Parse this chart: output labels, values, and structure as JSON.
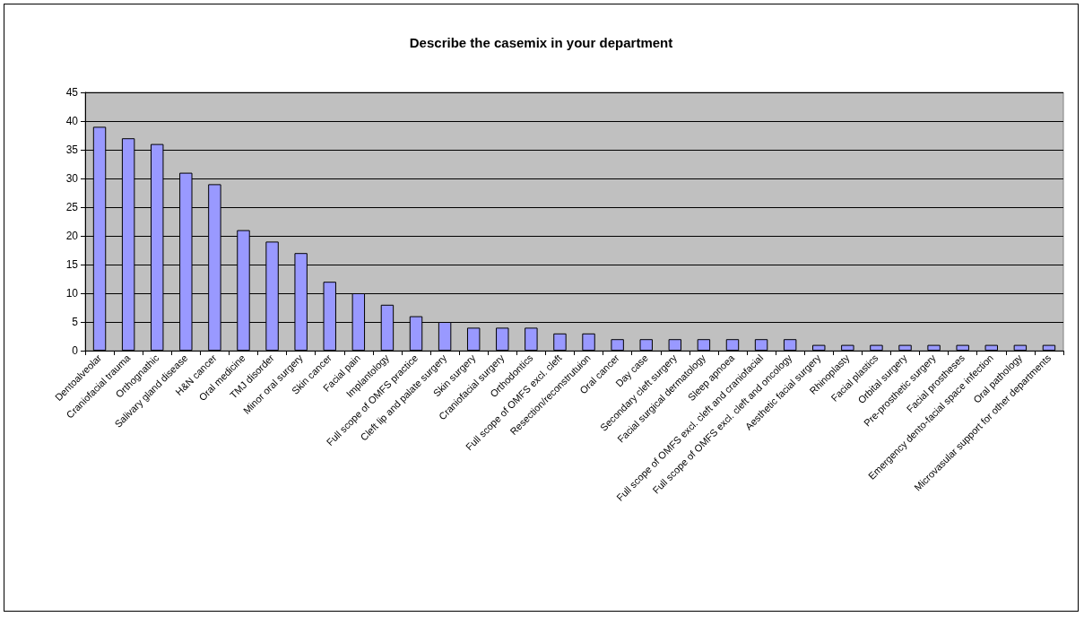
{
  "chart_data": {
    "type": "bar",
    "title": "Describe the casemix in your department",
    "categories": [
      "Dentoalveolar",
      "Craniofacial trauma",
      "Orthognathic",
      "Salivary gland disease",
      "H&N cancer",
      "Oral medicine",
      "TMJ disorder",
      "Minor oral surgery",
      "Skin cancer",
      "Facial pain",
      "Implantology",
      "Full scope of OMFS practice",
      "Cleft lip and palate surgery",
      "Skin surgery",
      "Craniofacial surgery",
      "Orthodontics",
      "Full scope of OMFS excl. cleft",
      "Resection/reconstrutuion",
      "Oral cancer",
      "Day case",
      "Secondary cleft surgery",
      "Facial surgical dermatology",
      "Sleep apnoea",
      "Full scope of OMFS excl. cleft and craniofacial",
      "Full scope of OMFS excl. cleft and oncology",
      "Aesthetic facial surgery",
      "Rhinoplasty",
      "Facial plastics",
      "Orbital surgery",
      "Pre-prosthetic surgery",
      "Facial prostheses",
      "Emergency dento-facial space infection",
      "Oral pathology",
      "Microvasular support for other departments"
    ],
    "values": [
      39,
      37,
      36,
      31,
      29,
      21,
      19,
      17,
      12,
      10,
      8,
      6,
      5,
      4,
      4,
      4,
      3,
      3,
      2,
      2,
      2,
      2,
      2,
      2,
      2,
      1,
      1,
      1,
      1,
      1,
      1,
      1,
      1,
      1
    ],
    "color": "#9999ff",
    "ylim": [
      0,
      45
    ],
    "yticks": [
      0,
      5,
      10,
      15,
      20,
      25,
      30,
      35,
      40,
      45
    ],
    "grid": "y"
  }
}
